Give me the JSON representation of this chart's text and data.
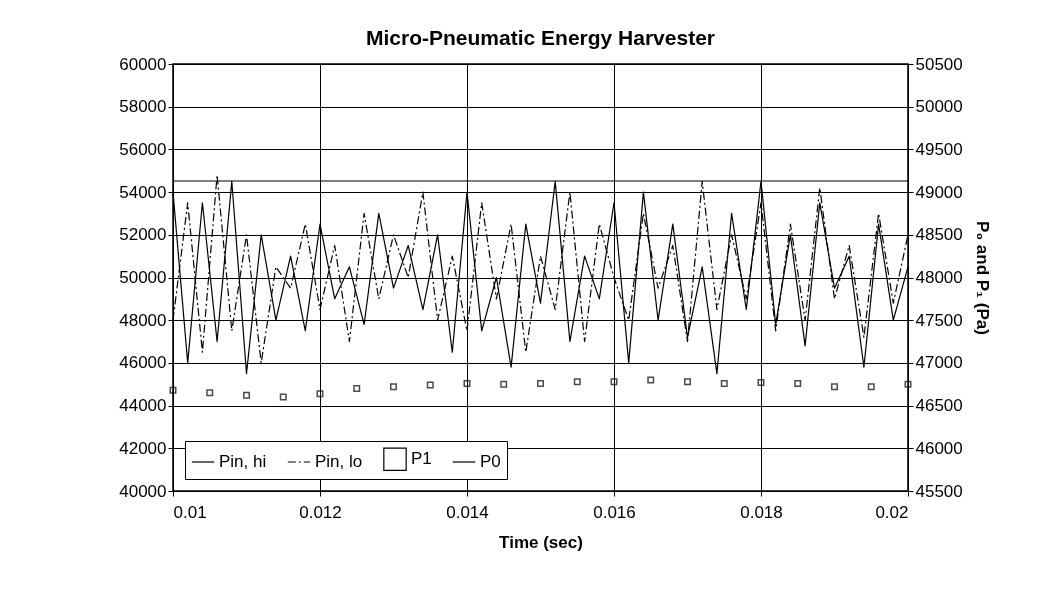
{
  "chart_data": {
    "type": "line",
    "title": "Micro-Pneumatic Energy Harvester",
    "xlabel": "Time (sec)",
    "y2label": "P₀ and P₁ (Pa)",
    "xlim": [
      0.01,
      0.02
    ],
    "xticks": [
      0.01,
      0.012,
      0.014,
      0.016,
      0.018,
      0.02
    ],
    "ylim": [
      40000,
      60000
    ],
    "yticks": [
      40000,
      42000,
      44000,
      46000,
      48000,
      50000,
      52000,
      54000,
      56000,
      58000,
      60000
    ],
    "y2lim": [
      45500,
      50500
    ],
    "y2ticks": [
      45500,
      46000,
      46500,
      47000,
      47500,
      48000,
      48500,
      49000,
      49500,
      50000,
      50500
    ],
    "grid": true,
    "legend": "bottom left",
    "series": [
      {
        "name": "Pin, hi",
        "color": "#000000",
        "line_style": "solid",
        "x": [
          0.01,
          0.0102,
          0.0104,
          0.0106,
          0.0108,
          0.011,
          0.0112,
          0.0114,
          0.0116,
          0.0118,
          0.012,
          0.0122,
          0.0124,
          0.0126,
          0.0128,
          0.013,
          0.0132,
          0.0134,
          0.0136,
          0.0138,
          0.014,
          0.0142,
          0.0144,
          0.0146,
          0.0148,
          0.015,
          0.0152,
          0.0154,
          0.0156,
          0.0158,
          0.016,
          0.0162,
          0.0164,
          0.0166,
          0.0168,
          0.017,
          0.0172,
          0.0174,
          0.0176,
          0.0178,
          0.018,
          0.0182,
          0.0184,
          0.0186,
          0.0188,
          0.019,
          0.0192,
          0.0194,
          0.0196,
          0.0198,
          0.02
        ],
        "values": [
          54000,
          46000,
          53500,
          47000,
          54500,
          45500,
          52000,
          48000,
          51000,
          47500,
          52500,
          49000,
          50500,
          47800,
          53000,
          49500,
          51500,
          48500,
          52000,
          46500,
          54000,
          47500,
          50000,
          45800,
          52500,
          48800,
          54500,
          47000,
          51000,
          49000,
          53500,
          46000,
          54000,
          48000,
          52500,
          47200,
          50500,
          45500,
          53000,
          48500,
          54500,
          47800,
          52000,
          46800,
          53500,
          49500,
          51000,
          45800,
          52500,
          48000,
          50500
        ]
      },
      {
        "name": "Pin, lo",
        "color": "#000000",
        "line_style": "dashed",
        "x": [
          0.01,
          0.0102,
          0.0104,
          0.0106,
          0.0108,
          0.011,
          0.0112,
          0.0114,
          0.0116,
          0.0118,
          0.012,
          0.0122,
          0.0124,
          0.0126,
          0.0128,
          0.013,
          0.0132,
          0.0134,
          0.0136,
          0.0138,
          0.014,
          0.0142,
          0.0144,
          0.0146,
          0.0148,
          0.015,
          0.0152,
          0.0154,
          0.0156,
          0.0158,
          0.016,
          0.0162,
          0.0164,
          0.0166,
          0.0168,
          0.017,
          0.0172,
          0.0174,
          0.0176,
          0.0178,
          0.018,
          0.0182,
          0.0184,
          0.0186,
          0.0188,
          0.019,
          0.0192,
          0.0194,
          0.0196,
          0.0198,
          0.02
        ],
        "values": [
          48000,
          53500,
          46500,
          54800,
          47500,
          52000,
          46000,
          50500,
          49500,
          52500,
          48500,
          51500,
          47000,
          53000,
          49000,
          52000,
          50000,
          54000,
          48000,
          51000,
          47500,
          53500,
          49000,
          52500,
          46500,
          51000,
          48500,
          54000,
          47000,
          52500,
          50000,
          48000,
          53000,
          49500,
          51500,
          47000,
          54500,
          48500,
          52000,
          49000,
          53500,
          47500,
          52500,
          48000,
          54200,
          49000,
          51500,
          47200,
          53000,
          48800,
          52000
        ]
      },
      {
        "name": "P1",
        "color": "#000000",
        "type": "scatter",
        "marker": "square",
        "axis": "y2",
        "x": [
          0.01,
          0.0105,
          0.011,
          0.0115,
          0.012,
          0.0125,
          0.013,
          0.0135,
          0.014,
          0.0145,
          0.015,
          0.0155,
          0.016,
          0.0165,
          0.017,
          0.0175,
          0.018,
          0.0185,
          0.019,
          0.0195,
          0.02
        ],
        "values": [
          46680,
          46650,
          46620,
          46600,
          46640,
          46700,
          46720,
          46740,
          46760,
          46750,
          46760,
          46780,
          46780,
          46800,
          46780,
          46760,
          46770,
          46760,
          46720,
          46720,
          46750
        ]
      },
      {
        "name": "P0",
        "color": "#000000",
        "line_style": "solid",
        "axis": "y2",
        "x": [
          0.01,
          0.02
        ],
        "values": [
          49130,
          49130
        ]
      }
    ]
  }
}
